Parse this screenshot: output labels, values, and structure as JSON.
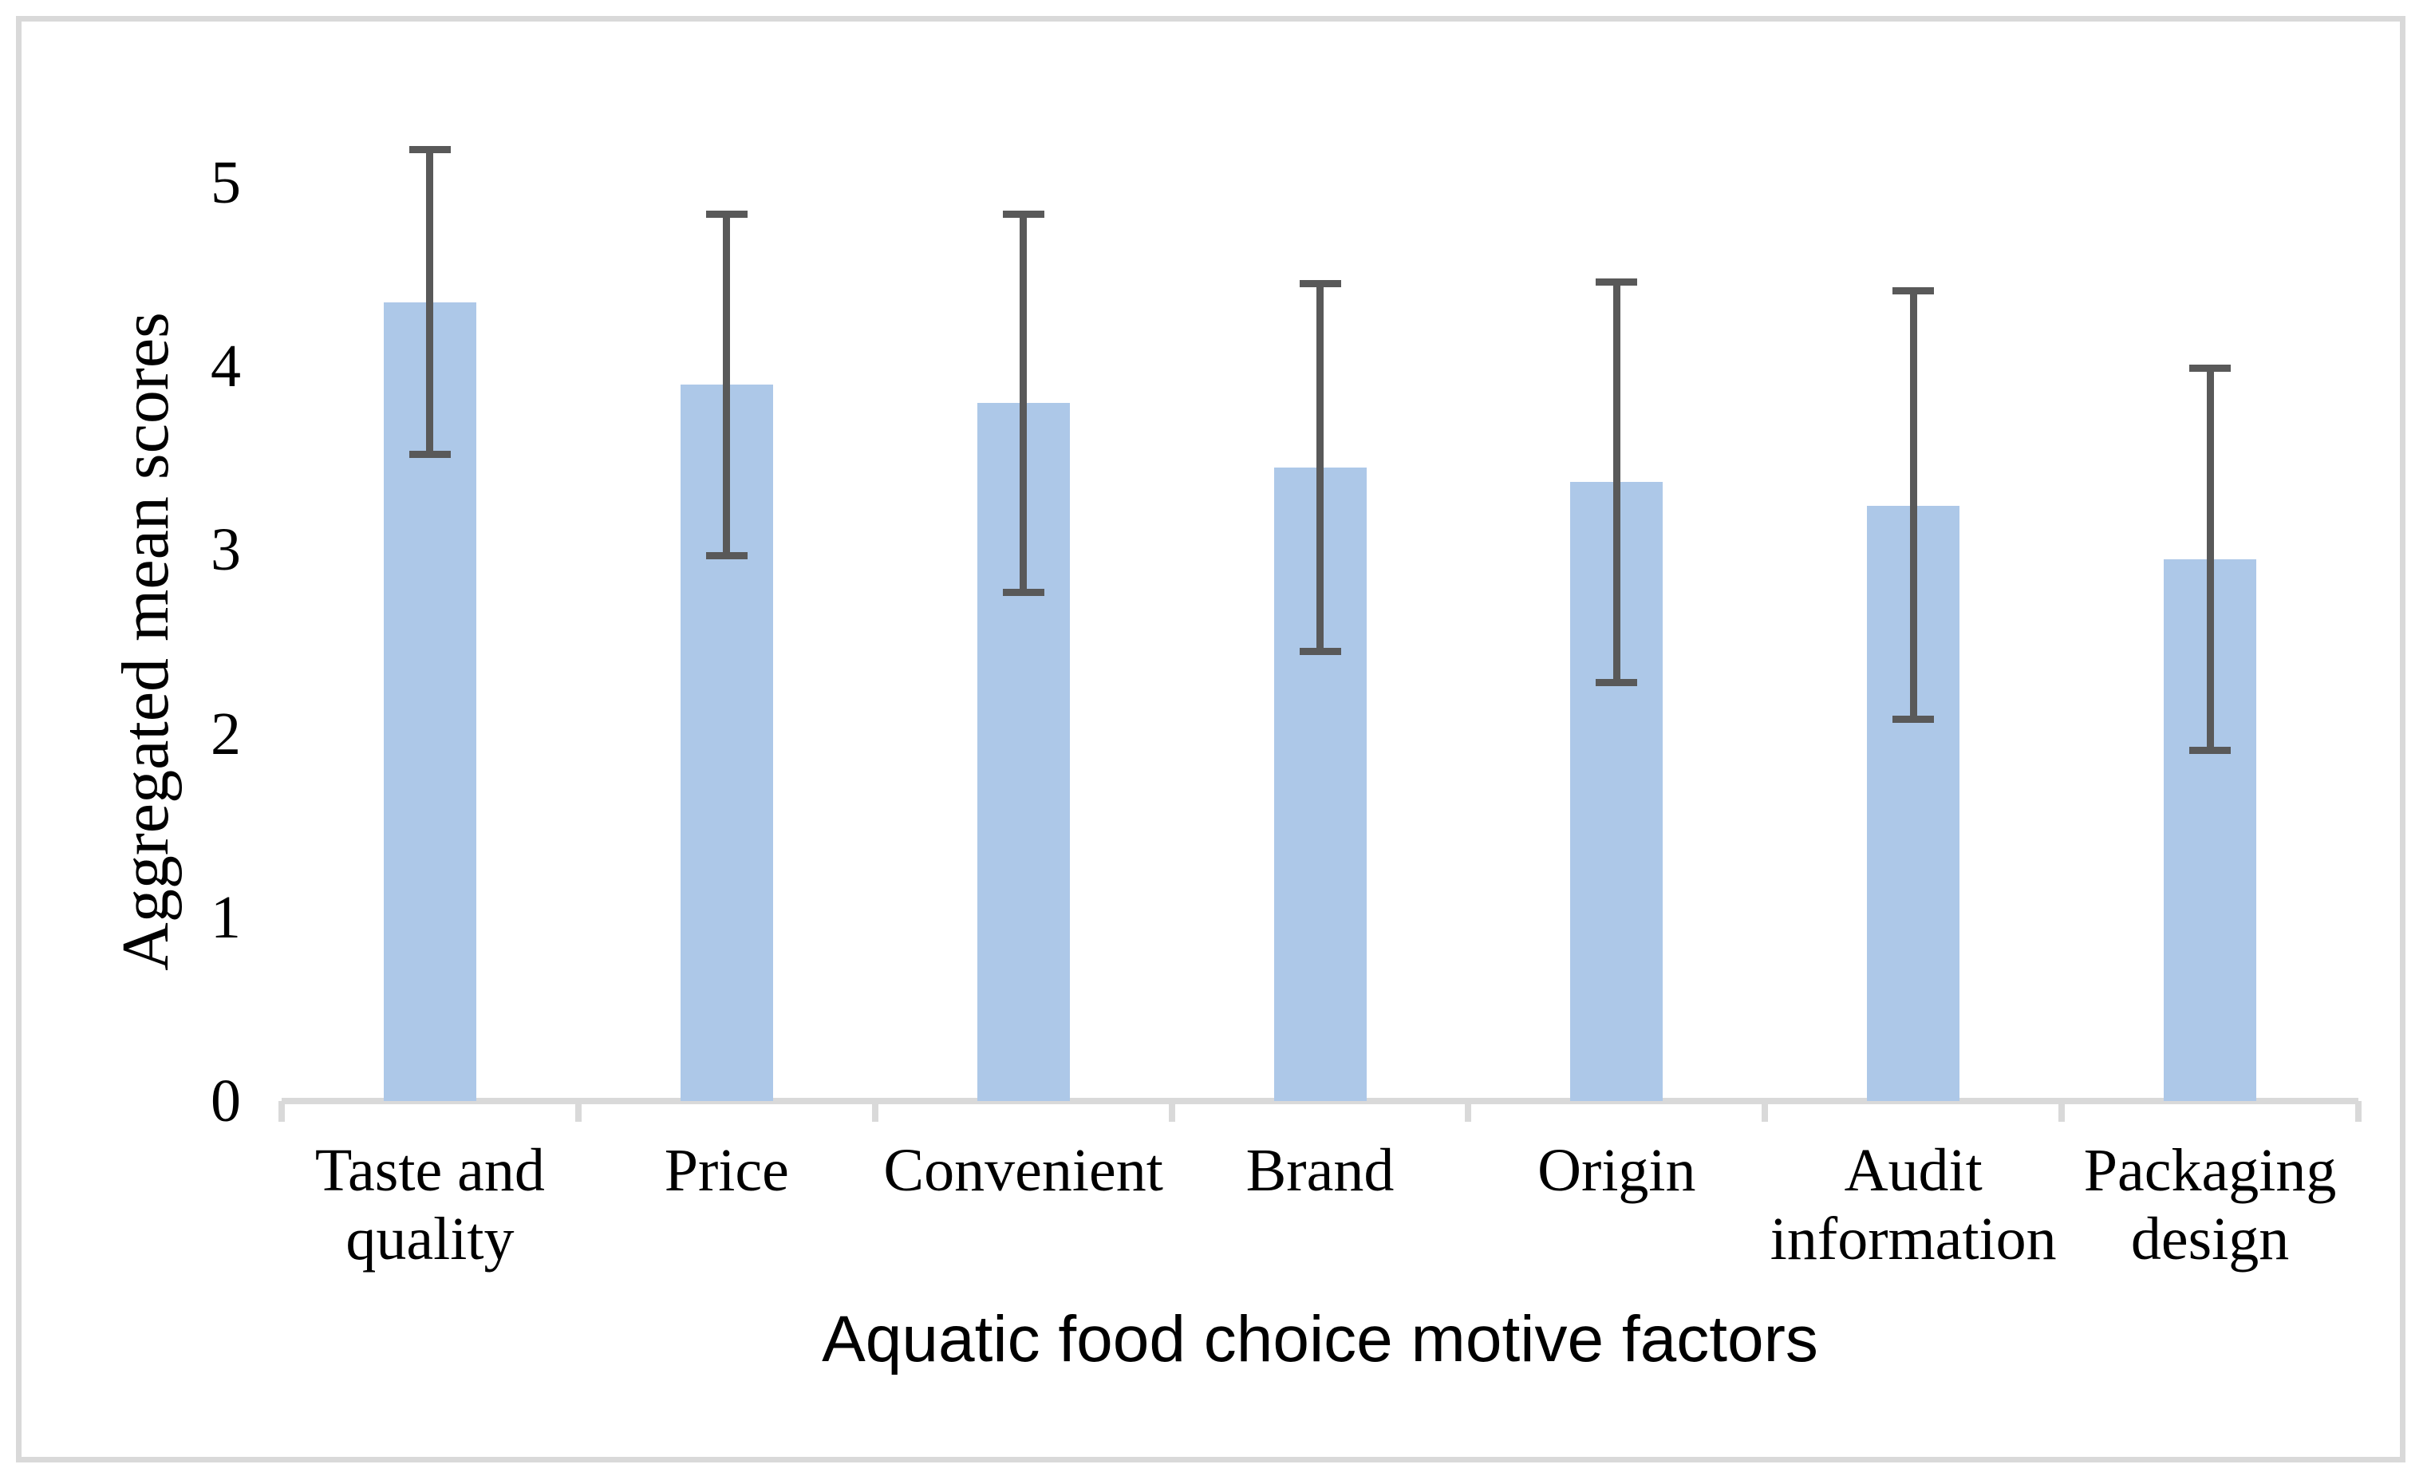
{
  "chart_data": {
    "type": "bar",
    "title": "",
    "xlabel": "Aquatic food choice motive factors",
    "ylabel": "Aggregated mean scores",
    "categories": [
      "Taste and quality",
      "Price",
      "Convenient",
      "Brand",
      "Origin",
      "Audit information",
      "Packaging design"
    ],
    "category_lines": [
      [
        "Taste and",
        "quality"
      ],
      [
        "Price"
      ],
      [
        "Convenient"
      ],
      [
        "Brand"
      ],
      [
        "Origin"
      ],
      [
        "Audit",
        "information"
      ],
      [
        "Packaging",
        "design"
      ]
    ],
    "series": [
      {
        "name": "Aggregated mean scores",
        "values": [
          4.35,
          3.9,
          3.8,
          3.45,
          3.37,
          3.24,
          2.95
        ]
      }
    ],
    "error_bars": {
      "upper": [
        5.2,
        4.85,
        4.85,
        4.47,
        4.48,
        4.43,
        4.01
      ],
      "lower": [
        3.5,
        2.95,
        2.75,
        2.43,
        2.26,
        2.06,
        1.89
      ]
    },
    "ylim": [
      0,
      5
    ],
    "yticks": [
      0,
      1,
      2,
      3,
      4,
      5
    ],
    "grid": false,
    "legend": false,
    "bar_color": "#adc8e8",
    "error_color": "#595959",
    "axis_color": "#d9d9d9",
    "border_color": "#d9d9d9",
    "text_color": "#000000"
  }
}
